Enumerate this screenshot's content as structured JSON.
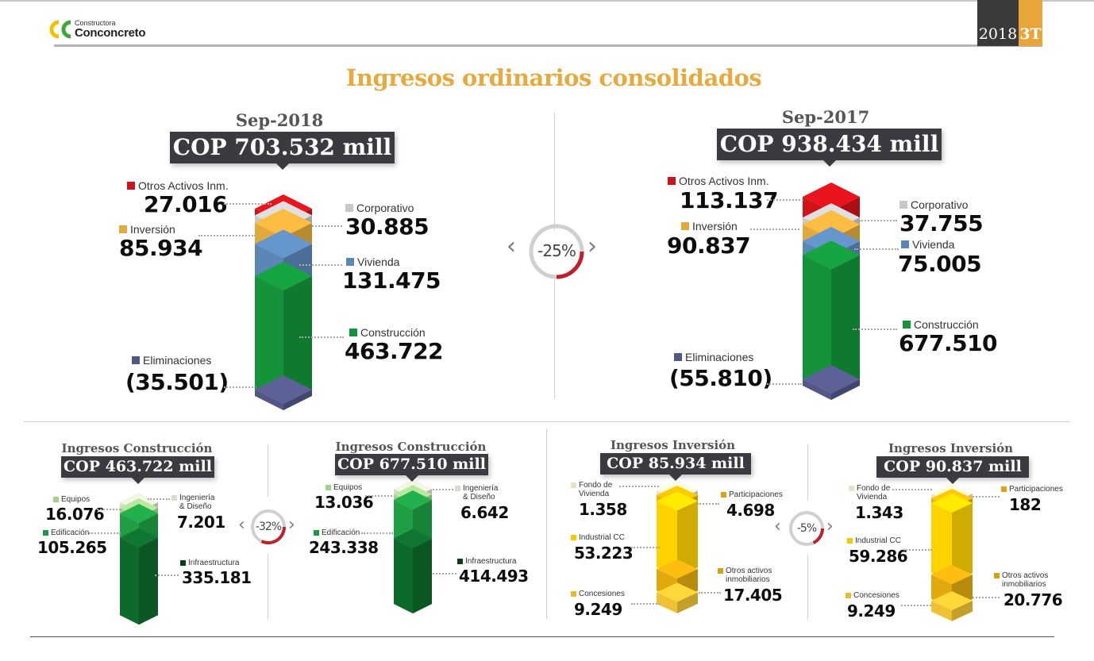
{
  "header": {
    "logo_small": "Constructora",
    "logo_big": "Conconcreto",
    "year": "2018",
    "quarter": "3T"
  },
  "colors": {
    "accent": "#e8a93e",
    "dark": "#3a3b40",
    "otros": "#d0121b",
    "corporativo": "#c8c8c8",
    "inversion": "#e2a93c",
    "vivienda": "#5a86b8",
    "construccion": "#14933a",
    "eliminaciones": "#525788",
    "decline": "#c0202a"
  },
  "title": "Ingresos ordinarios consolidados",
  "chart_data": [
    {
      "type": "stacked-bar",
      "title": "Sep-2018",
      "total_label": "COP 703.532 mill",
      "total": 703532,
      "unit": "COP mill",
      "series": [
        {
          "name": "Otros Activos Inm.",
          "value": 27016,
          "display": "27.016"
        },
        {
          "name": "Corporativo",
          "value": 30885,
          "display": "30.885"
        },
        {
          "name": "Inversión",
          "value": 85934,
          "display": "85.934"
        },
        {
          "name": "Vivienda",
          "value": 131475,
          "display": "131.475"
        },
        {
          "name": "Construcción",
          "value": 463722,
          "display": "463.722"
        },
        {
          "name": "Eliminaciones",
          "value": -35501,
          "display": "(35.501)"
        }
      ]
    },
    {
      "type": "stacked-bar",
      "title": "Sep-2017",
      "total_label": "COP 938.434 mill",
      "total": 938434,
      "unit": "COP mill",
      "series": [
        {
          "name": "Otros Activos Inm.",
          "value": 113137,
          "display": "113.137"
        },
        {
          "name": "Corporativo",
          "value": 37755,
          "display": "37.755"
        },
        {
          "name": "Inversión",
          "value": 90837,
          "display": "90.837"
        },
        {
          "name": "Vivienda",
          "value": 75005,
          "display": "75.005"
        },
        {
          "name": "Construcción",
          "value": 677510,
          "display": "677.510"
        },
        {
          "name": "Eliminaciones",
          "value": -55810,
          "display": "(55.810)"
        }
      ]
    },
    {
      "type": "stacked-bar",
      "title": "Ingresos Construcción",
      "period": "Sep-2018",
      "total_label": "COP 463.722 mill",
      "total": 463722,
      "series": [
        {
          "name": "Ingeniería & Diseño",
          "value": 7201,
          "display": "7.201"
        },
        {
          "name": "Equipos",
          "value": 16076,
          "display": "16.076"
        },
        {
          "name": "Edificación",
          "value": 105265,
          "display": "105.265"
        },
        {
          "name": "Infraestructura",
          "value": 335181,
          "display": "335.181"
        }
      ]
    },
    {
      "type": "stacked-bar",
      "title": "Ingresos Construcción",
      "period": "Sep-2017",
      "total_label": "COP 677.510 mill",
      "total": 677510,
      "series": [
        {
          "name": "Ingeniería & Diseño",
          "value": 6642,
          "display": "6.642"
        },
        {
          "name": "Equipos",
          "value": 13036,
          "display": "13.036"
        },
        {
          "name": "Edificación",
          "value": 243338,
          "display": "243.338"
        },
        {
          "name": "Infraestructura",
          "value": 414493,
          "display": "414.493"
        }
      ]
    },
    {
      "type": "stacked-bar",
      "title": "Ingresos Inversión",
      "period": "Sep-2018",
      "total_label": "COP 85.934 mill",
      "total": 85934,
      "series": [
        {
          "name": "Fondo de Vivienda",
          "value": 1358,
          "display": "1.358"
        },
        {
          "name": "Participaciones",
          "value": 4698,
          "display": "4.698"
        },
        {
          "name": "Industrial CC",
          "value": 53223,
          "display": "53.223"
        },
        {
          "name": "Otros activos inmobiliarios",
          "value": 17405,
          "display": "17.405"
        },
        {
          "name": "Concesiones",
          "value": 9249,
          "display": "9.249"
        }
      ]
    },
    {
      "type": "stacked-bar",
      "title": "Ingresos Inversión",
      "period": "Sep-2017",
      "total_label": "COP 90.837 mill",
      "total": 90837,
      "series": [
        {
          "name": "Fondo de Vivienda",
          "value": 1343,
          "display": "1.343"
        },
        {
          "name": "Participaciones",
          "value": 182,
          "display": "182"
        },
        {
          "name": "Industrial CC",
          "value": 59286,
          "display": "59.286"
        },
        {
          "name": "Otros activos inmobiliarios",
          "value": 20776,
          "display": "20.776"
        },
        {
          "name": "Concesiones",
          "value": 9249,
          "display": "9.249"
        }
      ]
    }
  ],
  "comparisons": {
    "total": {
      "label": "-25%",
      "value": -25
    },
    "construccion": {
      "label": "-32%",
      "value": -32
    },
    "inversion": {
      "label": "-5%",
      "value": -5
    }
  },
  "labels": {
    "otros": "Otros Activos Inm.",
    "corporativo": "Corporativo",
    "inversion": "Inversión",
    "vivienda": "Vivienda",
    "construccion": "Construcción",
    "eliminaciones": "Eliminaciones",
    "equipos": "Equipos",
    "ingenieria_1": "Ingeniería",
    "ingenieria_2": "& Diseño",
    "edificacion": "Edificación",
    "infraestructura": "Infraestructura",
    "fondo_1": "Fondo de",
    "fondo_2": "Vivienda",
    "participaciones": "Participaciones",
    "industrial": "Industrial CC",
    "otros_act_1": "Otros activos",
    "otros_act_2": "inmobiliarios",
    "concesiones": "Concesiones"
  },
  "icons": {
    "prev": "chevron-left-icon",
    "next": "chevron-right-icon"
  }
}
